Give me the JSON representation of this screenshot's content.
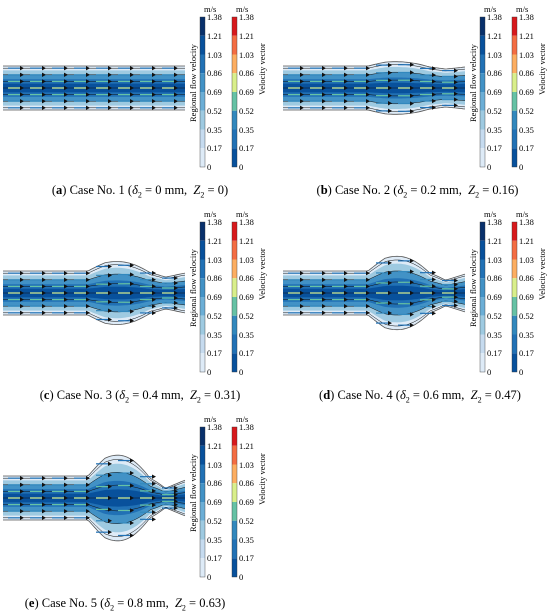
{
  "colorbar": {
    "unit": "m/s",
    "flow_title": "Regional flow velocity",
    "vector_title": "Velocity vector",
    "ticks": [
      "1.38",
      "1.21",
      "1.03",
      "0.86",
      "0.69",
      "0.52",
      "0.35",
      "0.17",
      "0"
    ],
    "flow_colors": [
      "#08306b",
      "#08519c",
      "#2171b5",
      "#4292c6",
      "#6baed6",
      "#9ecae1",
      "#c6dbef",
      "#deebf7",
      "#f7fbff"
    ],
    "vector_colors": [
      "#d7191c",
      "#f46d43",
      "#fdae61",
      "#d9ef8b",
      "#66c2a5",
      "#3288bd",
      "#2171b5",
      "#08519c",
      "#08306b"
    ]
  },
  "panels": [
    {
      "label": "a",
      "case": "Case No. 1",
      "delta": "0 mm",
      "z": "0"
    },
    {
      "label": "b",
      "case": "Case No. 2",
      "delta": "0.2 mm",
      "z": "0.16"
    },
    {
      "label": "c",
      "case": "Case No. 3",
      "delta": "0.4 mm",
      "z": "0.31"
    },
    {
      "label": "d",
      "case": "Case No. 4",
      "delta": "0.6 mm",
      "z": "0.47"
    },
    {
      "label": "e",
      "case": "Case No. 5",
      "delta": "0.8 mm",
      "z": "0.63"
    }
  ],
  "caption_parts": {
    "delta_symbol": "δ",
    "sub": "2",
    "z_symbol": "Z"
  }
}
